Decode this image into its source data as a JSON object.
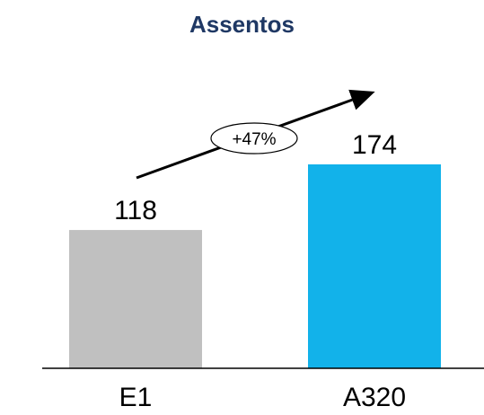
{
  "chart_data": {
    "type": "bar",
    "title": "Assentos",
    "categories": [
      "E1",
      "A320"
    ],
    "values": [
      118,
      174
    ],
    "colors": [
      "#c0c0c0",
      "#12b2ea"
    ],
    "axis_color": "#000000",
    "title_color": "#1f3864",
    "growth_annotation": "+47%",
    "xlabel": "",
    "ylabel": "",
    "ylim": [
      0,
      200
    ],
    "grid": false,
    "legend": "none"
  }
}
